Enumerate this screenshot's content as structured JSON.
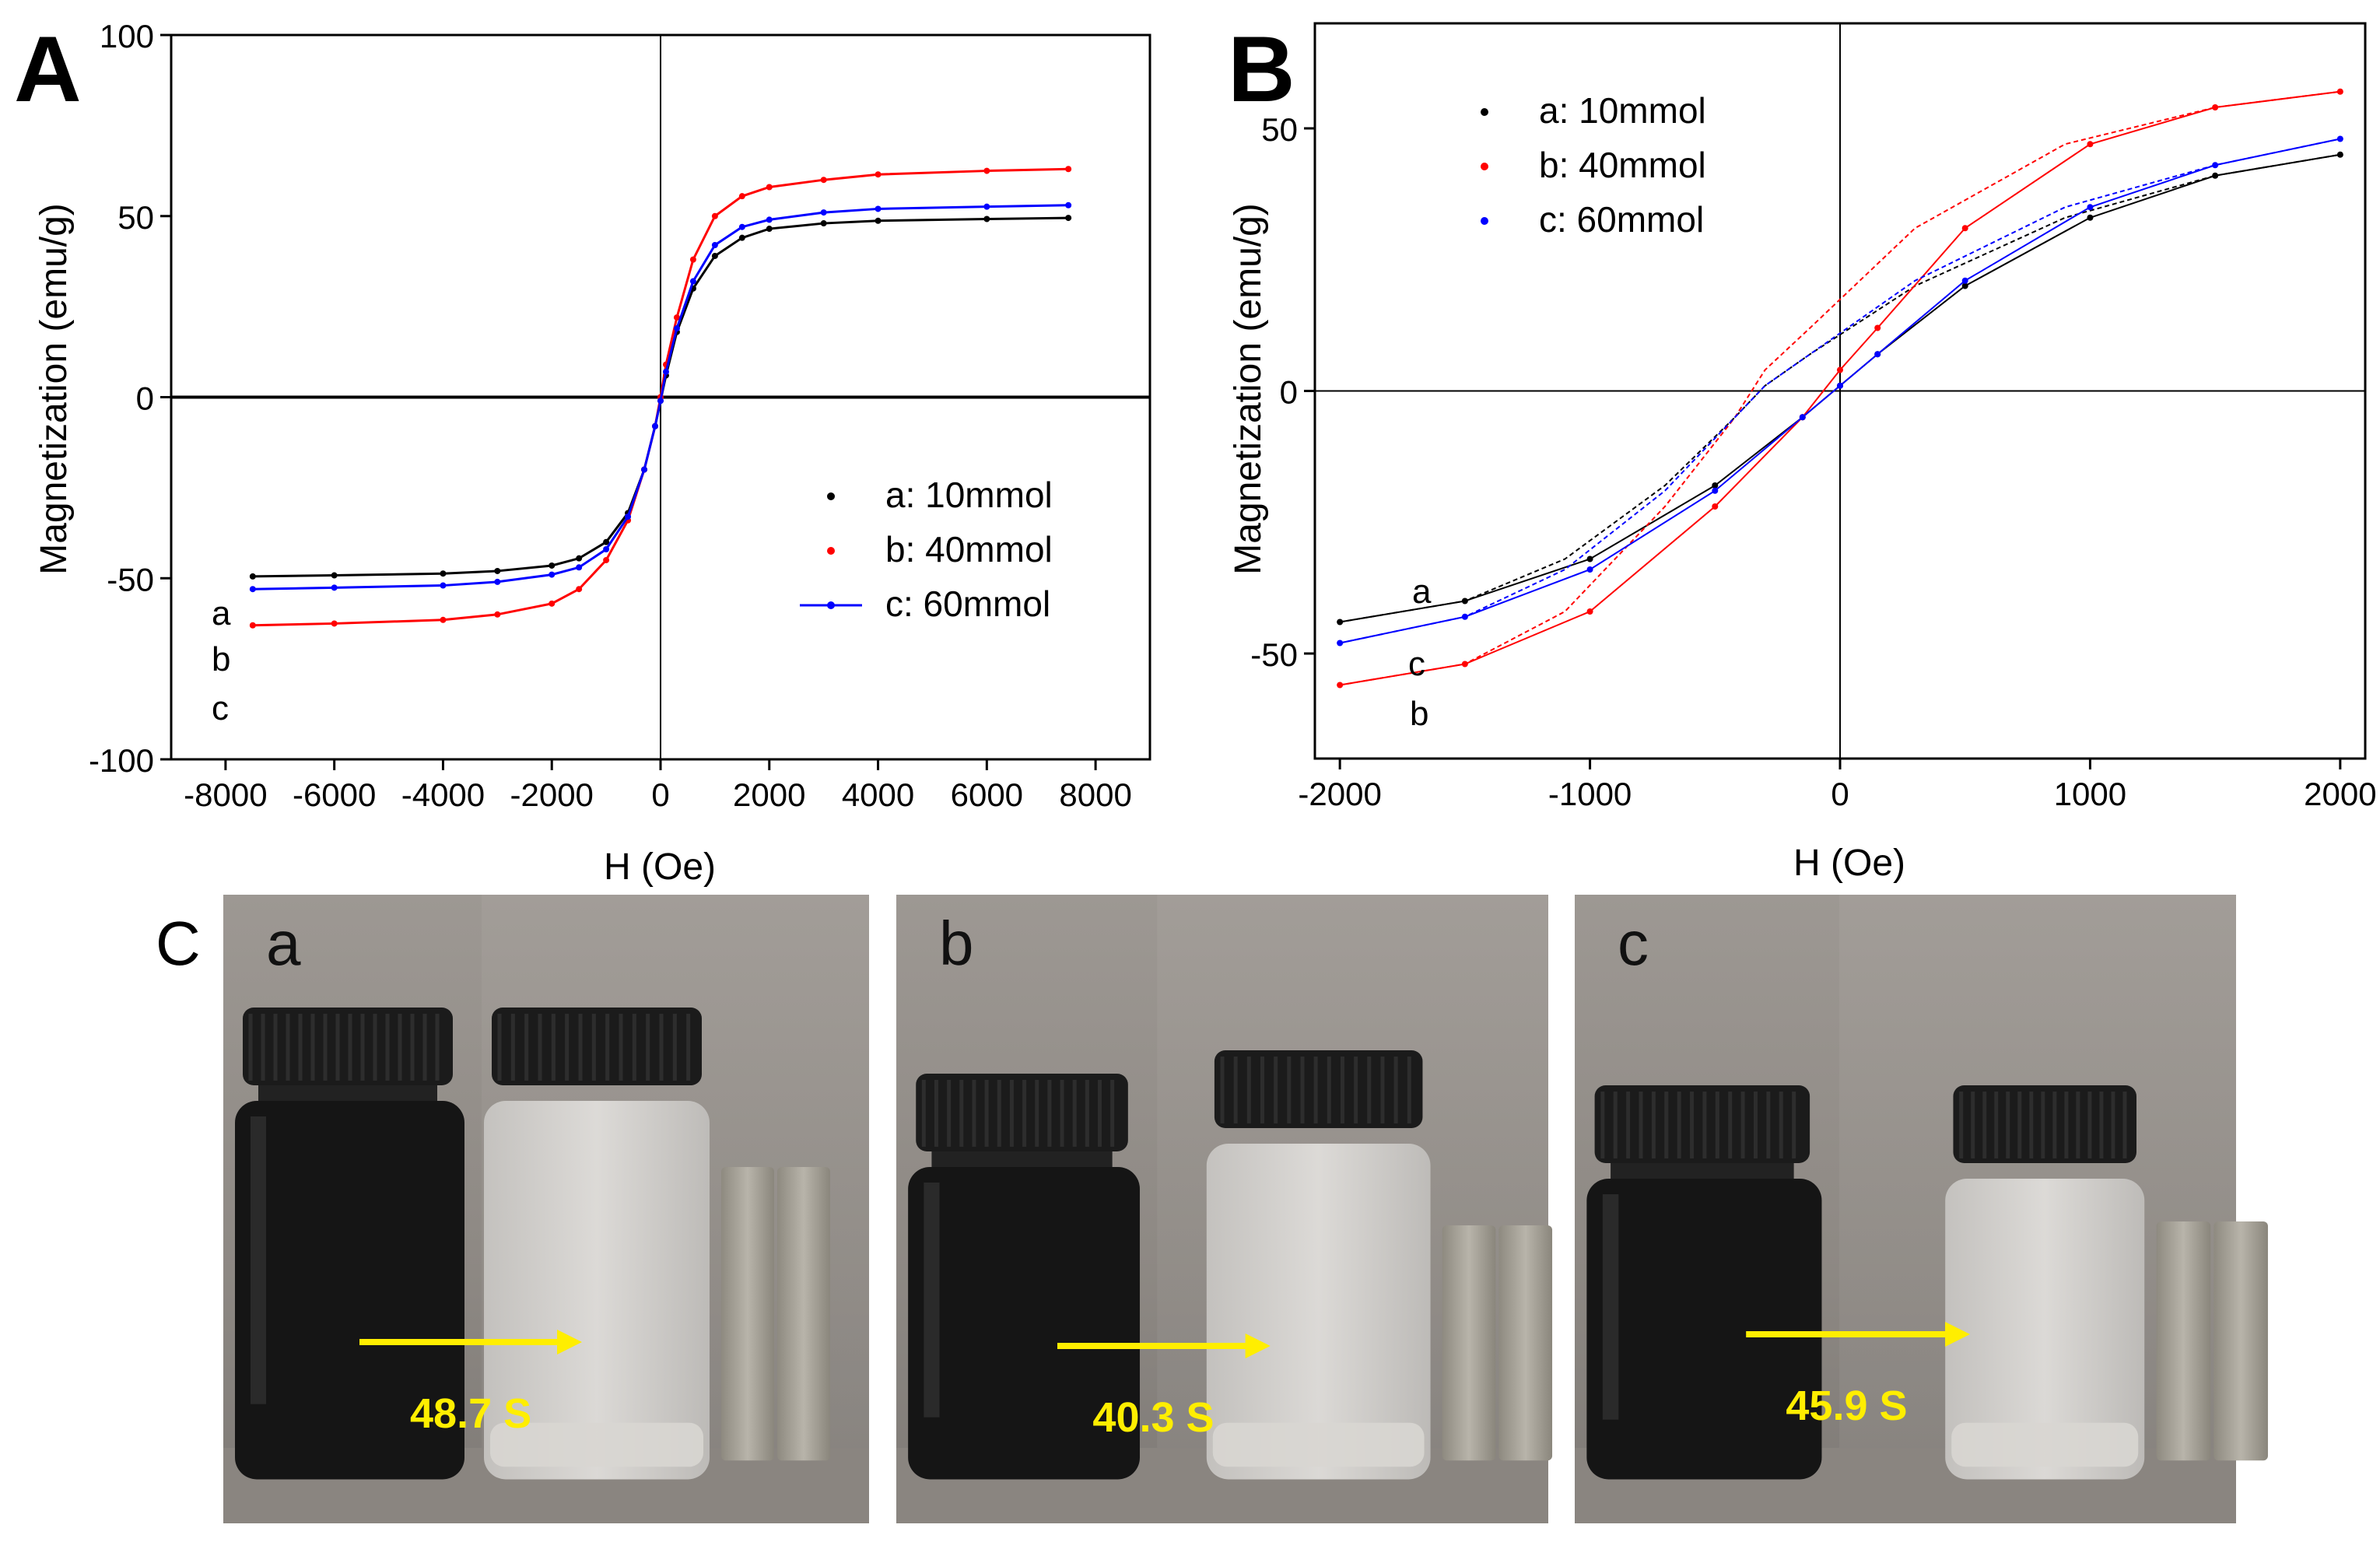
{
  "panels": {
    "A": {
      "label": "A"
    },
    "B": {
      "label": "B"
    },
    "C": {
      "label": "C"
    }
  },
  "photos": [
    {
      "label": "a",
      "time": "48.7 S"
    },
    {
      "label": "b",
      "time": "40.3 S"
    },
    {
      "label": "c",
      "time": "45.9 S"
    }
  ],
  "colors": {
    "a": "#000000",
    "b": "#ff0000",
    "c": "#0000ff",
    "arrow": "#ffee00"
  },
  "chart_data": [
    {
      "type": "line",
      "panel": "A",
      "xlabel": "H (Oe)",
      "ylabel": "Magnetization (emu/g)",
      "xlim": [
        -9000,
        9000
      ],
      "ylim": [
        -100,
        100
      ],
      "xticks": [
        "-8000",
        "-6000",
        "-4000",
        "-2000",
        "0",
        "2000",
        "4000",
        "6000",
        "8000"
      ],
      "yticks": [
        "-100",
        "-50",
        "0",
        "50",
        "100"
      ],
      "legend_position": "bottom-right",
      "curve_labels": [
        "a",
        "b",
        "c"
      ],
      "series": [
        {
          "name": "a: 10mmol",
          "color": "#000000",
          "x": [
            -7500,
            -6000,
            -4000,
            -3000,
            -2000,
            -1500,
            -1000,
            -600,
            -300,
            -100,
            0,
            100,
            300,
            600,
            1000,
            1500,
            2000,
            3000,
            4000,
            6000,
            7500
          ],
          "y": [
            -49.5,
            -49.2,
            -48.7,
            -48,
            -46.5,
            -44.5,
            -40,
            -32,
            -20,
            -8,
            -1,
            6,
            18,
            30,
            39,
            44,
            46.5,
            48,
            48.7,
            49.2,
            49.5
          ]
        },
        {
          "name": "b: 40mmol",
          "color": "#ff0000",
          "x": [
            -7500,
            -6000,
            -4000,
            -3000,
            -2000,
            -1500,
            -1000,
            -600,
            -300,
            -100,
            0,
            100,
            300,
            600,
            1000,
            1500,
            2000,
            3000,
            4000,
            6000,
            7500
          ],
          "y": [
            -63,
            -62.5,
            -61.5,
            -60,
            -57,
            -53,
            -45,
            -34,
            -20,
            -8,
            0,
            9,
            22,
            38,
            50,
            55.5,
            58,
            60,
            61.5,
            62.5,
            63
          ]
        },
        {
          "name": "c: 60mmol",
          "color": "#0000ff",
          "x": [
            -7500,
            -6000,
            -4000,
            -3000,
            -2000,
            -1500,
            -1000,
            -600,
            -300,
            -100,
            0,
            100,
            300,
            600,
            1000,
            1500,
            2000,
            3000,
            4000,
            6000,
            7500
          ],
          "y": [
            -53,
            -52.6,
            -52,
            -51,
            -49,
            -47,
            -42,
            -33,
            -20,
            -8,
            -1,
            7,
            19,
            32,
            42,
            47,
            49,
            51,
            52,
            52.6,
            53
          ]
        }
      ]
    },
    {
      "type": "line",
      "panel": "B",
      "xlabel": "H (Oe)",
      "ylabel": "Magnetization (emu/g)",
      "xlim": [
        -2100,
        2100
      ],
      "ylim": [
        -70,
        70
      ],
      "xticks": [
        "-2000",
        "-1000",
        "0",
        "1000",
        "2000"
      ],
      "yticks": [
        "-50",
        "0",
        "50"
      ],
      "legend_position": "top-left",
      "curve_labels": [
        "a",
        "c",
        "b"
      ],
      "series": [
        {
          "name": "a: 10mmol",
          "color": "#000000",
          "x": [
            -2000,
            -1500,
            -1000,
            -500,
            -150,
            0,
            150,
            500,
            1000,
            1500,
            2000
          ],
          "y": [
            -44,
            -40,
            -32,
            -18,
            -5,
            1,
            7,
            20,
            33,
            41,
            45
          ]
        },
        {
          "name": "b: 40mmol",
          "color": "#ff0000",
          "x": [
            -2000,
            -1500,
            -1000,
            -500,
            -150,
            0,
            150,
            500,
            1000,
            1500,
            2000
          ],
          "y": [
            -56,
            -52,
            -42,
            -22,
            -5,
            4,
            12,
            31,
            47,
            54,
            57
          ]
        },
        {
          "name": "c: 60mmol",
          "color": "#0000ff",
          "x": [
            -2000,
            -1500,
            -1000,
            -500,
            -150,
            0,
            150,
            500,
            1000,
            1500,
            2000
          ],
          "y": [
            -48,
            -43,
            -34,
            -19,
            -5,
            1,
            7,
            21,
            35,
            43,
            48
          ]
        }
      ]
    }
  ]
}
